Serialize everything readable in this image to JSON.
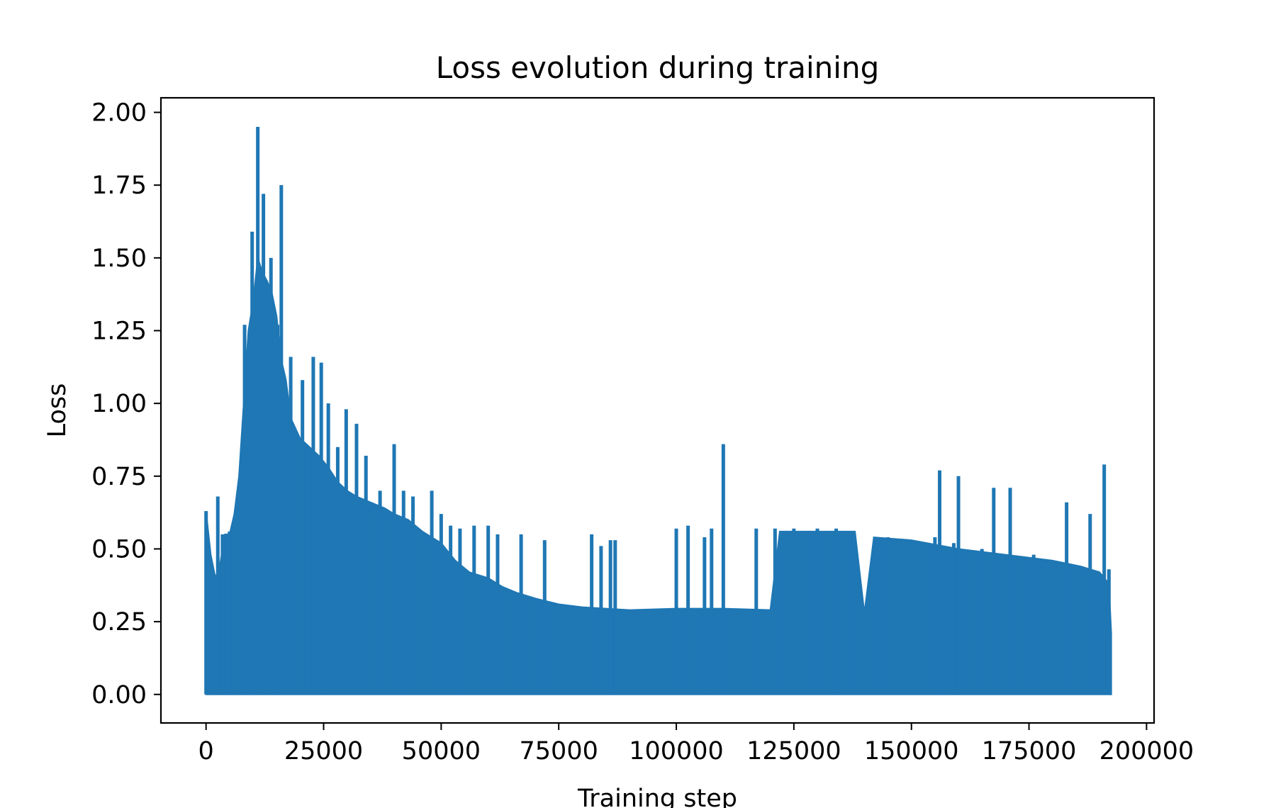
{
  "chart_data": {
    "type": "line",
    "title": "Loss evolution during training",
    "xlabel": "Training step",
    "ylabel": "Loss",
    "xlim": [
      -9600,
      201600
    ],
    "ylim": [
      -0.098,
      2.05
    ],
    "xticks": [
      0,
      25000,
      50000,
      75000,
      100000,
      125000,
      150000,
      175000,
      200000
    ],
    "xtick_labels": [
      "0",
      "25000",
      "50000",
      "75000",
      "100000",
      "125000",
      "150000",
      "175000",
      "200000"
    ],
    "yticks": [
      0.0,
      0.25,
      0.5,
      0.75,
      1.0,
      1.25,
      1.5,
      1.75,
      2.0
    ],
    "ytick_labels": [
      "0.00",
      "0.25",
      "0.50",
      "0.75",
      "1.00",
      "1.25",
      "1.50",
      "1.75",
      "2.00"
    ],
    "grid": false,
    "series": [
      {
        "name": "loss",
        "color": "#1f77b4",
        "description": "Noisy per-step training loss; plotted as dense band with spikes",
        "envelope_upper": [
          [
            0,
            0.63
          ],
          [
            1000,
            0.48
          ],
          [
            2000,
            0.4
          ],
          [
            3000,
            0.45
          ],
          [
            4000,
            0.55
          ],
          [
            5000,
            0.55
          ],
          [
            6000,
            0.62
          ],
          [
            7000,
            0.75
          ],
          [
            8000,
            1.0
          ],
          [
            9000,
            1.25
          ],
          [
            10000,
            1.35
          ],
          [
            11000,
            1.5
          ],
          [
            12000,
            1.45
          ],
          [
            13000,
            1.42
          ],
          [
            14000,
            1.38
          ],
          [
            15000,
            1.3
          ],
          [
            16000,
            1.15
          ],
          [
            17000,
            1.08
          ],
          [
            18000,
            0.95
          ],
          [
            20000,
            0.88
          ],
          [
            22000,
            0.85
          ],
          [
            24000,
            0.82
          ],
          [
            26000,
            0.78
          ],
          [
            28000,
            0.73
          ],
          [
            30000,
            0.7
          ],
          [
            32000,
            0.68
          ],
          [
            35000,
            0.66
          ],
          [
            38000,
            0.64
          ],
          [
            40000,
            0.62
          ],
          [
            43000,
            0.6
          ],
          [
            46000,
            0.56
          ],
          [
            50000,
            0.52
          ],
          [
            53000,
            0.46
          ],
          [
            56000,
            0.42
          ],
          [
            60000,
            0.4
          ],
          [
            63000,
            0.37
          ],
          [
            66000,
            0.35
          ],
          [
            70000,
            0.33
          ],
          [
            75000,
            0.31
          ],
          [
            80000,
            0.3
          ],
          [
            85000,
            0.295
          ],
          [
            90000,
            0.29
          ],
          [
            100000,
            0.295
          ],
          [
            110000,
            0.295
          ],
          [
            120000,
            0.29
          ],
          [
            122000,
            0.56
          ],
          [
            138000,
            0.56
          ],
          [
            140000,
            0.28
          ],
          [
            142000,
            0.54
          ],
          [
            150000,
            0.53
          ],
          [
            160000,
            0.5
          ],
          [
            170000,
            0.48
          ],
          [
            180000,
            0.46
          ],
          [
            186000,
            0.44
          ],
          [
            190000,
            0.42
          ],
          [
            192000,
            0.38
          ],
          [
            192500,
            0.21
          ]
        ],
        "envelope_lower": 0.0,
        "spikes": [
          [
            0,
            0.63
          ],
          [
            2500,
            0.68
          ],
          [
            3500,
            0.55
          ],
          [
            5000,
            0.56
          ],
          [
            8200,
            1.27
          ],
          [
            9800,
            1.59
          ],
          [
            11000,
            1.95
          ],
          [
            12200,
            1.72
          ],
          [
            13800,
            1.5
          ],
          [
            15200,
            1.27
          ],
          [
            16000,
            1.75
          ],
          [
            18000,
            1.16
          ],
          [
            20500,
            1.08
          ],
          [
            22800,
            1.16
          ],
          [
            24500,
            1.14
          ],
          [
            26000,
            1.0
          ],
          [
            28000,
            0.85
          ],
          [
            29800,
            0.98
          ],
          [
            32000,
            0.93
          ],
          [
            34000,
            0.82
          ],
          [
            37000,
            0.7
          ],
          [
            40000,
            0.86
          ],
          [
            42000,
            0.7
          ],
          [
            44000,
            0.68
          ],
          [
            48000,
            0.7
          ],
          [
            50000,
            0.62
          ],
          [
            52000,
            0.58
          ],
          [
            54000,
            0.57
          ],
          [
            57000,
            0.58
          ],
          [
            60000,
            0.58
          ],
          [
            62000,
            0.55
          ],
          [
            67000,
            0.55
          ],
          [
            72000,
            0.53
          ],
          [
            82000,
            0.55
          ],
          [
            84000,
            0.51
          ],
          [
            86000,
            0.53
          ],
          [
            87000,
            0.53
          ],
          [
            100000,
            0.57
          ],
          [
            102500,
            0.58
          ],
          [
            106000,
            0.54
          ],
          [
            107500,
            0.57
          ],
          [
            110000,
            0.86
          ],
          [
            117000,
            0.57
          ],
          [
            121000,
            0.57
          ],
          [
            125000,
            0.57
          ],
          [
            130000,
            0.57
          ],
          [
            134000,
            0.57
          ],
          [
            137000,
            0.56
          ],
          [
            142500,
            0.54
          ],
          [
            145000,
            0.54
          ],
          [
            155000,
            0.54
          ],
          [
            156000,
            0.77
          ],
          [
            159000,
            0.52
          ],
          [
            160000,
            0.75
          ],
          [
            165000,
            0.5
          ],
          [
            167500,
            0.71
          ],
          [
            171000,
            0.71
          ],
          [
            176000,
            0.48
          ],
          [
            183000,
            0.66
          ],
          [
            188000,
            0.62
          ],
          [
            191000,
            0.79
          ],
          [
            192000,
            0.43
          ]
        ]
      }
    ]
  }
}
